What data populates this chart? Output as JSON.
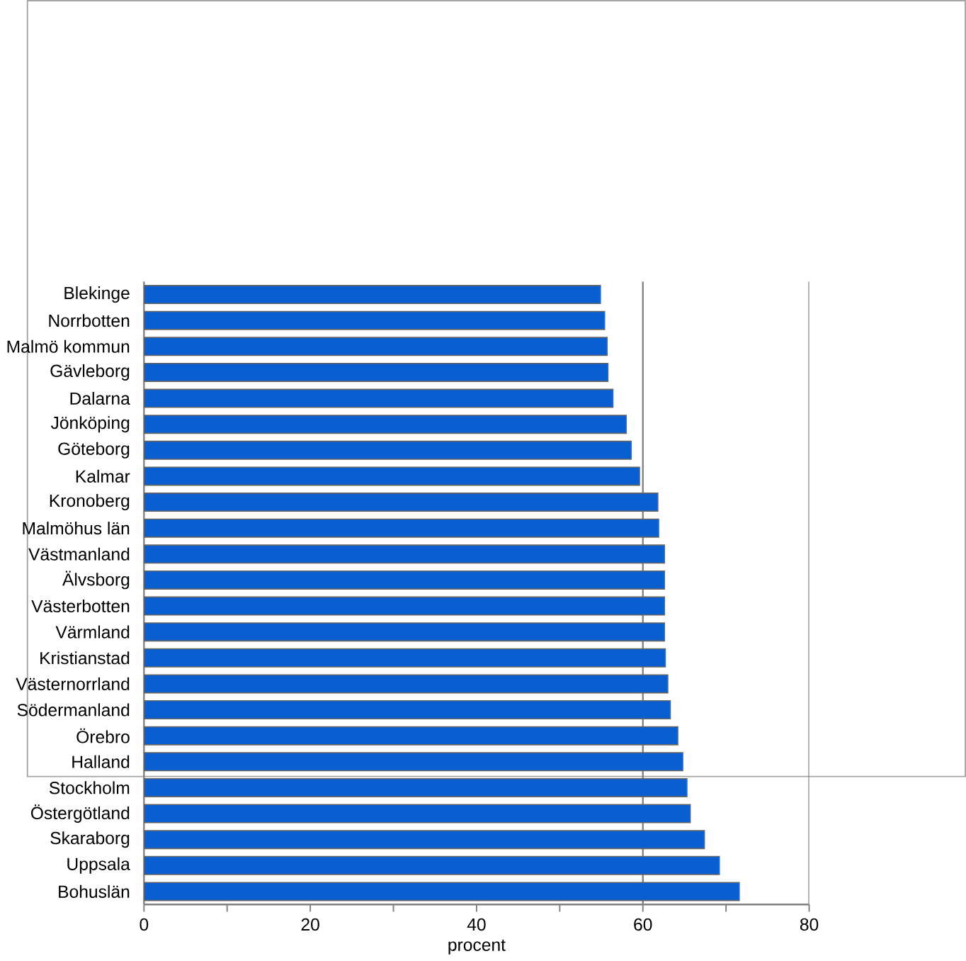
{
  "chart_data": {
    "type": "bar",
    "orientation": "horizontal",
    "xlabel": "procent",
    "categories": [
      "Blekinge",
      "Norrbotten",
      "Malmö kommun",
      "Gävleborg",
      "Dalarna",
      "Jönköping",
      "Göteborg",
      "Kalmar",
      "Kronoberg",
      "Malmöhus län",
      "Västmanland",
      "Älvsborg",
      "Västerbotten",
      "Värmland",
      "Kristianstad",
      "Västernorrland",
      "Södermanland",
      "Örebro",
      "Halland",
      "Stockholm",
      "Östergötland",
      "Skaraborg",
      "Uppsala",
      "Bohuslän"
    ],
    "values": [
      54.9,
      55.4,
      55.7,
      55.8,
      56.4,
      58.0,
      58.6,
      59.6,
      61.8,
      61.9,
      62.6,
      62.6,
      62.6,
      62.6,
      62.7,
      63.0,
      63.3,
      64.2,
      64.8,
      65.3,
      65.7,
      67.4,
      69.2,
      71.6
    ],
    "color": "#0a5fd0",
    "xlim": [
      0,
      80
    ],
    "xticks": [
      0,
      {
        "value": 10,
        "label": null
      },
      20,
      {
        "value": 30,
        "label": null
      },
      40,
      {
        "value": 50,
        "label": null
      },
      60,
      {
        "value": 70,
        "label": null
      },
      80
    ],
    "ref_lines": [
      {
        "axis": "x",
        "value": 60,
        "color": "#808080"
      }
    ],
    "grid": false
  }
}
